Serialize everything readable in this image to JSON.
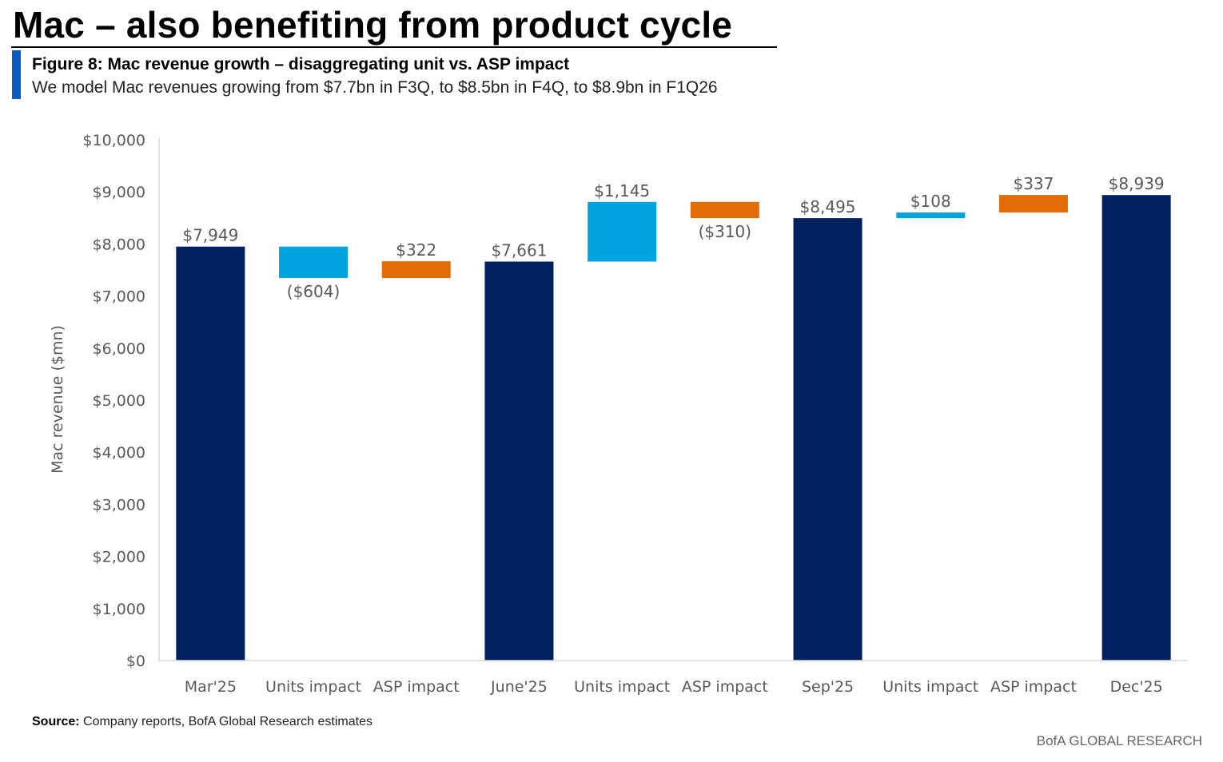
{
  "header": {
    "title": "Mac – also benefiting from product cycle",
    "figure_title": "Figure 8: Mac revenue growth – disaggregating unit vs. ASP impact",
    "figure_subtitle": "We model Mac revenues growing from $7.7bn in F3Q, to $8.5bn in F4Q, to $8.9bn in F1Q26"
  },
  "footer": {
    "source_label": "Source:",
    "source_text": " Company reports, BofA Global Research estimates",
    "brand": "BofA GLOBAL RESEARCH"
  },
  "colors": {
    "total": "#002060",
    "units": "#00a3e0",
    "asp": "#e36c09",
    "axis": "#d9d9d9",
    "label": "#595959"
  },
  "chart_data": {
    "type": "waterfall",
    "ylabel": "Mac revenue ($mn)",
    "ylim": [
      0,
      10000
    ],
    "yticks": [
      0,
      1000,
      2000,
      3000,
      4000,
      5000,
      6000,
      7000,
      8000,
      9000,
      10000
    ],
    "ytick_labels": [
      "$0",
      "$1,000",
      "$2,000",
      "$3,000",
      "$4,000",
      "$5,000",
      "$6,000",
      "$7,000",
      "$8,000",
      "$9,000",
      "$10,000"
    ],
    "grid": false,
    "legend": "none",
    "items": [
      {
        "category": "Mar'25",
        "kind": "total",
        "value": 7949,
        "label": "$7,949"
      },
      {
        "category": "Units impact",
        "kind": "units",
        "value": -604,
        "label": "($604)"
      },
      {
        "category": "ASP impact",
        "kind": "asp",
        "value": 322,
        "label": "$322"
      },
      {
        "category": "June'25",
        "kind": "total",
        "value": 7661,
        "label": "$7,661"
      },
      {
        "category": "Units impact",
        "kind": "units",
        "value": 1145,
        "label": "$1,145"
      },
      {
        "category": "ASP impact",
        "kind": "asp",
        "value": -310,
        "label": "($310)"
      },
      {
        "category": "Sep'25",
        "kind": "total",
        "value": 8495,
        "label": "$8,495"
      },
      {
        "category": "Units impact",
        "kind": "units",
        "value": 108,
        "label": "$108"
      },
      {
        "category": "ASP impact",
        "kind": "asp",
        "value": 337,
        "label": "$337"
      },
      {
        "category": "Dec'25",
        "kind": "total",
        "value": 8939,
        "label": "$8,939"
      }
    ]
  }
}
